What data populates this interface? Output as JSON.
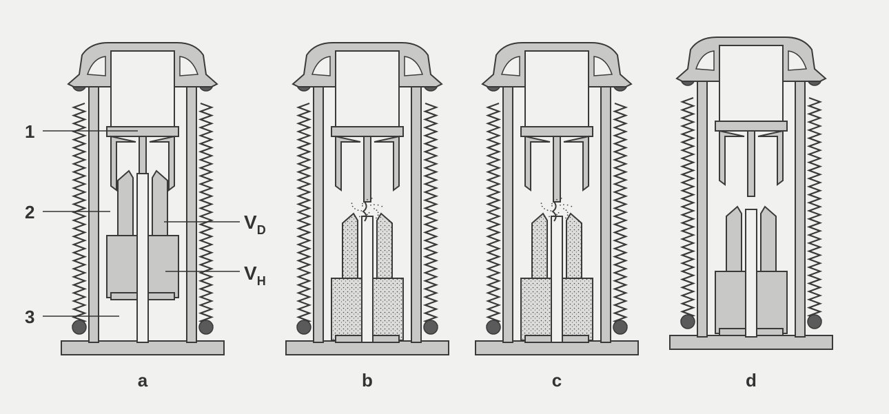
{
  "panels": [
    {
      "label": "a",
      "state": "closed",
      "arc": false
    },
    {
      "label": "b",
      "state": "opening",
      "arc": true
    },
    {
      "label": "c",
      "state": "opening",
      "arc": true
    },
    {
      "label": "d",
      "state": "open",
      "arc": false
    }
  ],
  "callouts": [
    {
      "text": "1"
    },
    {
      "text": "2"
    },
    {
      "text": "3"
    }
  ],
  "volumes": [
    {
      "symbol": "V",
      "subscript": "D"
    },
    {
      "symbol": "V",
      "subscript": "H"
    }
  ],
  "colors": {
    "background": "#f1f1ef",
    "fill": "#c8c8c6",
    "outline": "#3a3a3a",
    "dark": "#5a5a5a",
    "gas": "#dcdcda"
  }
}
